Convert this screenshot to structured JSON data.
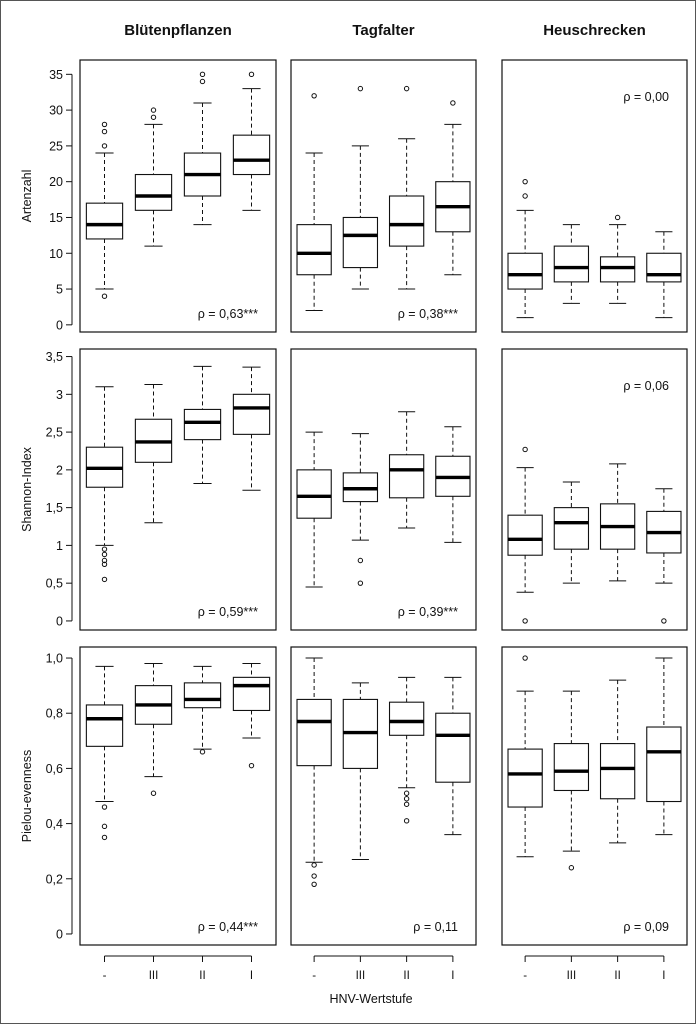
{
  "chart_data": {
    "type": "boxplot",
    "columns": [
      "Blütenpflanzen",
      "Tagfalter",
      "Heuschrecken"
    ],
    "categories": [
      "-",
      "III",
      "II",
      "I"
    ],
    "xlabel": "HNV-Wertstufe",
    "rows": [
      {
        "ylabel": "Artenzahl",
        "ylim": [
          -1,
          37
        ],
        "yticks": [
          0,
          5,
          10,
          15,
          20,
          25,
          30,
          35
        ],
        "ytick_labels": [
          "0",
          "5",
          "10",
          "15",
          "20",
          "25",
          "30",
          "35"
        ],
        "panels": [
          {
            "rho": "ρ = 0,63***",
            "rho_pos": "bottom-right",
            "boxes": [
              {
                "min": 5,
                "q1": 12,
                "median": 14,
                "q3": 17,
                "max": 24,
                "outliers": [
                  4,
                  25,
                  27,
                  28
                ]
              },
              {
                "min": 11,
                "q1": 16,
                "median": 18,
                "q3": 21,
                "max": 28,
                "outliers": [
                  29,
                  30
                ]
              },
              {
                "min": 14,
                "q1": 18,
                "median": 21,
                "q3": 24,
                "max": 31,
                "outliers": [
                  34,
                  35
                ]
              },
              {
                "min": 16,
                "q1": 21,
                "median": 23,
                "q3": 26.5,
                "max": 33,
                "outliers": [
                  35
                ]
              }
            ]
          },
          {
            "rho": "ρ = 0,38***",
            "rho_pos": "bottom-right",
            "boxes": [
              {
                "min": 2,
                "q1": 7,
                "median": 10,
                "q3": 14,
                "max": 24,
                "outliers": [
                  32
                ]
              },
              {
                "min": 5,
                "q1": 8,
                "median": 12.5,
                "q3": 15,
                "max": 25,
                "outliers": [
                  33
                ]
              },
              {
                "min": 5,
                "q1": 11,
                "median": 14,
                "q3": 18,
                "max": 26,
                "outliers": [
                  33
                ]
              },
              {
                "min": 7,
                "q1": 13,
                "median": 16.5,
                "q3": 20,
                "max": 28,
                "outliers": [
                  31
                ]
              }
            ]
          },
          {
            "rho": "ρ = 0,00",
            "rho_pos": "top-right",
            "boxes": [
              {
                "min": 1,
                "q1": 5,
                "median": 7,
                "q3": 10,
                "max": 16,
                "outliers": [
                  18,
                  20
                ]
              },
              {
                "min": 3,
                "q1": 6,
                "median": 8,
                "q3": 11,
                "max": 14,
                "outliers": []
              },
              {
                "min": 3,
                "q1": 6,
                "median": 8,
                "q3": 9.5,
                "max": 14,
                "outliers": [
                  15
                ]
              },
              {
                "min": 1,
                "q1": 6,
                "median": 7,
                "q3": 10,
                "max": 13,
                "outliers": []
              }
            ]
          }
        ]
      },
      {
        "ylabel": "Shannon-Index",
        "ylim": [
          -0.12,
          3.6
        ],
        "yticks": [
          0,
          0.5,
          1,
          1.5,
          2,
          2.5,
          3,
          3.5
        ],
        "ytick_labels": [
          "0",
          "0,5",
          "1",
          "1,5",
          "2",
          "2,5",
          "3",
          "3,5"
        ],
        "panels": [
          {
            "rho": "ρ = 0,59***",
            "rho_pos": "bottom-right",
            "boxes": [
              {
                "min": 1.0,
                "q1": 1.77,
                "median": 2.02,
                "q3": 2.3,
                "max": 3.1,
                "outliers": [
                  0.55,
                  0.75,
                  0.8,
                  0.88,
                  0.95
                ]
              },
              {
                "min": 1.3,
                "q1": 2.1,
                "median": 2.37,
                "q3": 2.67,
                "max": 3.13,
                "outliers": []
              },
              {
                "min": 1.82,
                "q1": 2.4,
                "median": 2.63,
                "q3": 2.8,
                "max": 3.37,
                "outliers": []
              },
              {
                "min": 1.73,
                "q1": 2.47,
                "median": 2.82,
                "q3": 3.0,
                "max": 3.36,
                "outliers": []
              }
            ]
          },
          {
            "rho": "ρ = 0,39***",
            "rho_pos": "bottom-right",
            "boxes": [
              {
                "min": 0.45,
                "q1": 1.36,
                "median": 1.65,
                "q3": 2.0,
                "max": 2.5,
                "outliers": []
              },
              {
                "min": 1.07,
                "q1": 1.58,
                "median": 1.75,
                "q3": 1.96,
                "max": 2.48,
                "outliers": [
                  0.5,
                  0.8
                ]
              },
              {
                "min": 1.23,
                "q1": 1.63,
                "median": 2.0,
                "q3": 2.2,
                "max": 2.77,
                "outliers": []
              },
              {
                "min": 1.04,
                "q1": 1.65,
                "median": 1.9,
                "q3": 2.18,
                "max": 2.57,
                "outliers": []
              }
            ]
          },
          {
            "rho": "ρ = 0,06",
            "rho_pos": "top-right",
            "boxes": [
              {
                "min": 0.38,
                "q1": 0.87,
                "median": 1.08,
                "q3": 1.4,
                "max": 2.03,
                "outliers": [
                  0.0,
                  2.27
                ]
              },
              {
                "min": 0.5,
                "q1": 0.95,
                "median": 1.3,
                "q3": 1.5,
                "max": 1.84,
                "outliers": []
              },
              {
                "min": 0.53,
                "q1": 0.95,
                "median": 1.25,
                "q3": 1.55,
                "max": 2.08,
                "outliers": []
              },
              {
                "min": 0.5,
                "q1": 0.9,
                "median": 1.17,
                "q3": 1.45,
                "max": 1.75,
                "outliers": [
                  0.0
                ]
              }
            ]
          }
        ]
      },
      {
        "ylabel": "Pielou-evenness",
        "ylim": [
          -0.04,
          1.04
        ],
        "yticks": [
          0,
          0.2,
          0.4,
          0.6,
          0.8,
          1.0
        ],
        "ytick_labels": [
          "0",
          "0,2",
          "0,4",
          "0,6",
          "0,8",
          "1,0"
        ],
        "panels": [
          {
            "rho": "ρ = 0,44***",
            "rho_pos": "bottom-right",
            "boxes": [
              {
                "min": 0.48,
                "q1": 0.68,
                "median": 0.78,
                "q3": 0.83,
                "max": 0.97,
                "outliers": [
                  0.35,
                  0.39,
                  0.46
                ]
              },
              {
                "min": 0.57,
                "q1": 0.76,
                "median": 0.83,
                "q3": 0.9,
                "max": 0.98,
                "outliers": [
                  0.51
                ]
              },
              {
                "min": 0.67,
                "q1": 0.82,
                "median": 0.85,
                "q3": 0.91,
                "max": 0.97,
                "outliers": [
                  0.66
                ]
              },
              {
                "min": 0.71,
                "q1": 0.81,
                "median": 0.9,
                "q3": 0.93,
                "max": 0.98,
                "outliers": [
                  0.61
                ]
              }
            ]
          },
          {
            "rho": "ρ = 0,11",
            "rho_pos": "bottom-right",
            "boxes": [
              {
                "min": 0.26,
                "q1": 0.61,
                "median": 0.77,
                "q3": 0.85,
                "max": 1.0,
                "outliers": [
                  0.18,
                  0.21,
                  0.25
                ]
              },
              {
                "min": 0.27,
                "q1": 0.6,
                "median": 0.73,
                "q3": 0.85,
                "max": 0.91,
                "outliers": []
              },
              {
                "min": 0.53,
                "q1": 0.72,
                "median": 0.77,
                "q3": 0.84,
                "max": 0.93,
                "outliers": [
                  0.41,
                  0.47,
                  0.49,
                  0.51
                ]
              },
              {
                "min": 0.36,
                "q1": 0.55,
                "median": 0.72,
                "q3": 0.8,
                "max": 0.93,
                "outliers": []
              }
            ]
          },
          {
            "rho": "ρ = 0,09",
            "rho_pos": "bottom-right",
            "boxes": [
              {
                "min": 0.28,
                "q1": 0.46,
                "median": 0.58,
                "q3": 0.67,
                "max": 0.88,
                "outliers": [
                  1.0
                ]
              },
              {
                "min": 0.3,
                "q1": 0.52,
                "median": 0.59,
                "q3": 0.69,
                "max": 0.88,
                "outliers": [
                  0.24
                ]
              },
              {
                "min": 0.33,
                "q1": 0.49,
                "median": 0.6,
                "q3": 0.69,
                "max": 0.92,
                "outliers": []
              },
              {
                "min": 0.36,
                "q1": 0.48,
                "median": 0.66,
                "q3": 0.75,
                "max": 1.0,
                "outliers": []
              }
            ]
          }
        ]
      }
    ]
  }
}
